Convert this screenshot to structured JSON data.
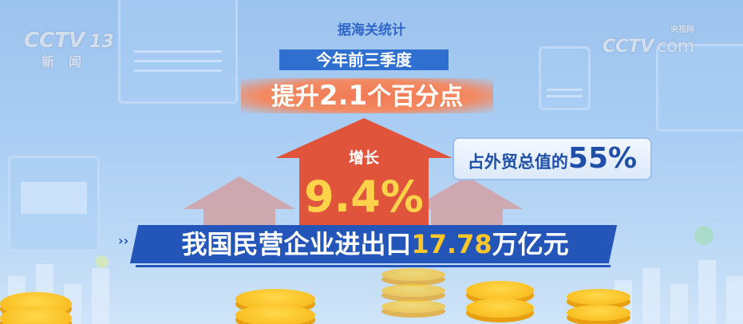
{
  "logos": {
    "channel": "CCTV",
    "channel_number": "13",
    "channel_name": "新闻",
    "site": "CCTV",
    "site_domain": "com",
    "site_name": "央视网"
  },
  "source": "据海关统计",
  "period": "今年前三季度",
  "rise": {
    "prefix": "提升",
    "value": "2.1",
    "suffix": "个百分点"
  },
  "growth": {
    "label": "增长",
    "value": "9.4%"
  },
  "share": {
    "label": "占外贸总值的",
    "value": "55%"
  },
  "headline": {
    "prefix": "我国民营企业进出口",
    "value": "17.78",
    "suffix": "万亿元"
  },
  "colors": {
    "accent_blue": "#2356b8",
    "arrow_red": "#e0543c",
    "highlight_yellow": "#ffc62a",
    "orange": "#f07a55"
  }
}
